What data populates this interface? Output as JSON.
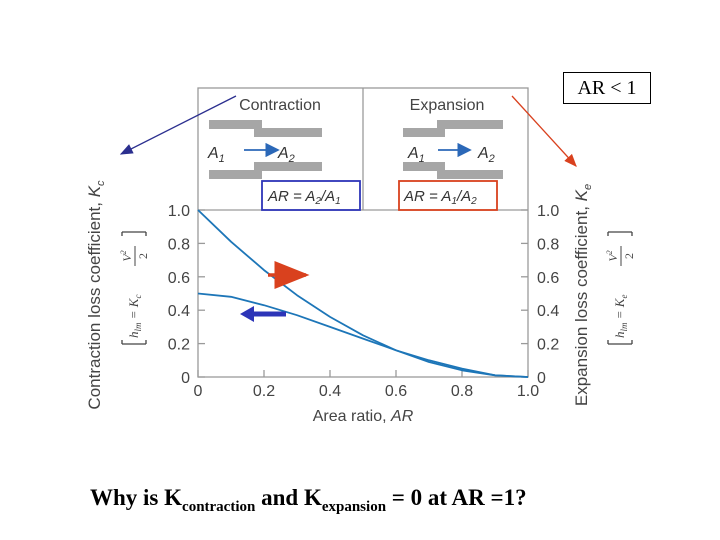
{
  "ar_callout": "AR < 1",
  "question": {
    "part1": "Why is K",
    "sub1": "contraction",
    "part2": " and K",
    "sub2": "expansion",
    "part3": " = 0 at AR =1?"
  },
  "chart_data": {
    "type": "line",
    "x": [
      0,
      0.1,
      0.2,
      0.3,
      0.4,
      0.5,
      0.6,
      0.7,
      0.8,
      0.9,
      1.0
    ],
    "series": [
      {
        "name": "Expansion",
        "values": [
          1.0,
          0.81,
          0.64,
          0.49,
          0.36,
          0.25,
          0.16,
          0.09,
          0.04,
          0.01,
          0.0
        ]
      },
      {
        "name": "Contraction",
        "values": [
          0.5,
          0.48,
          0.43,
          0.37,
          0.3,
          0.23,
          0.16,
          0.1,
          0.05,
          0.01,
          0.0
        ]
      }
    ],
    "xlabel": "Area ratio, AR",
    "ylabel_left": "Contraction loss coefficient, Kc",
    "ylabel_right": "Expansion loss coefficient, Ke",
    "formula_left": "hlm = Kc V2²/2",
    "formula_right": "hlm = Ke V1²/2",
    "xlim": [
      0,
      1.0
    ],
    "ylim": [
      0,
      1.0
    ],
    "x_ticks": [
      "0",
      "0.2",
      "0.4",
      "0.6",
      "0.8",
      "1.0"
    ],
    "y_ticks": [
      "0",
      "0.2",
      "0.4",
      "0.6",
      "0.8",
      "1.0"
    ],
    "panels": {
      "contraction": {
        "title": "Contraction",
        "a_in": "A1",
        "a_out": "A2",
        "formula": "AR = A2/A1"
      },
      "expansion": {
        "title": "Expansion",
        "a_in": "A1",
        "a_out": "A2",
        "formula": "AR = A1/A2"
      }
    },
    "colors": {
      "curve": "#1d76b8",
      "grid": "#9a9a9a",
      "red": "#d9411e",
      "blue": "#2d35b8",
      "navy": "#2b2f8f"
    }
  }
}
